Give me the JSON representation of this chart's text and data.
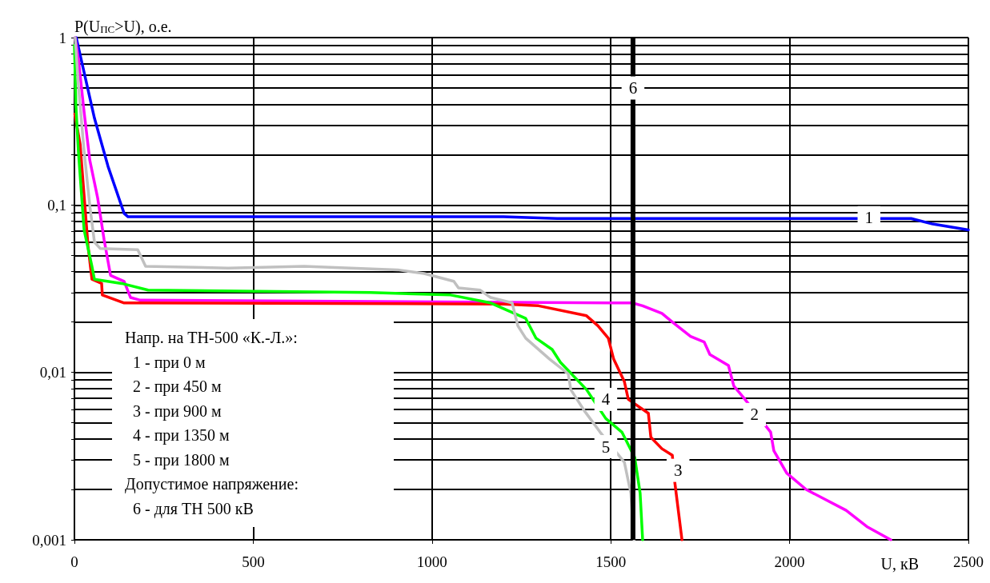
{
  "chart_data": {
    "type": "line",
    "xlabel": "U, кВ",
    "ylabel": "P(U$_{ПС}$>U), о.е.",
    "log": "y",
    "grid": true,
    "marker": "none",
    "line_style": "solid",
    "xlim": [
      0,
      2500
    ],
    "xticks": [
      0,
      500,
      1000,
      1500,
      2000,
      2500
    ],
    "ylim": [
      0.001,
      1
    ],
    "yticks": [
      {
        "value": 0.001,
        "label": "0,001"
      },
      {
        "value": 0.002,
        "label": null
      },
      {
        "value": 0.003,
        "label": null
      },
      {
        "value": 0.004,
        "label": null
      },
      {
        "value": 0.005,
        "label": null
      },
      {
        "value": 0.006,
        "label": null
      },
      {
        "value": 0.007,
        "label": null
      },
      {
        "value": 0.008,
        "label": null
      },
      {
        "value": 0.009,
        "label": null
      },
      {
        "value": 0.01,
        "label": "0,01"
      },
      {
        "value": 0.02,
        "label": null
      },
      {
        "value": 0.03,
        "label": null
      },
      {
        "value": 0.04,
        "label": null
      },
      {
        "value": 0.05,
        "label": null
      },
      {
        "value": 0.06,
        "label": null
      },
      {
        "value": 0.07,
        "label": null
      },
      {
        "value": 0.08,
        "label": null
      },
      {
        "value": 0.09,
        "label": null
      },
      {
        "value": 0.1,
        "label": "0,1"
      },
      {
        "value": 0.2,
        "label": null
      },
      {
        "value": 0.3,
        "label": null
      },
      {
        "value": 0.4,
        "label": null
      },
      {
        "value": 0.5,
        "label": null
      },
      {
        "value": 0.6,
        "label": null
      },
      {
        "value": 0.7,
        "label": null
      },
      {
        "value": 0.8,
        "label": null
      },
      {
        "value": 0.9,
        "label": null
      },
      1
    ],
    "series": [
      {
        "color": "#0000ff",
        "x": [
          5,
          27,
          56,
          94,
          139,
          150,
          1200,
          1350,
          2340,
          2400,
          2500
        ],
        "values": [
          1,
          0.62,
          0.33,
          0.17,
          0.089,
          0.085,
          0.085,
          0.083,
          0.083,
          0.077,
          0.071
        ]
      },
      {
        "color": "#ff00ff",
        "x": [
          2,
          11,
          27,
          43,
          65,
          83,
          101,
          139,
          157,
          184,
          1560,
          1589,
          1643,
          1672,
          1723,
          1761,
          1777,
          1829,
          1844,
          1873,
          1947,
          1956,
          1992,
          2046,
          2158,
          2216,
          2283
        ],
        "values": [
          1,
          0.75,
          0.36,
          0.185,
          0.11,
          0.062,
          0.038,
          0.035,
          0.028,
          0.027,
          0.026,
          0.025,
          0.0225,
          0.02,
          0.0164,
          0.0152,
          0.0128,
          0.011,
          0.0083,
          0.007,
          0.0044,
          0.0034,
          0.0025,
          0.002,
          0.0015,
          0.0012,
          0.001
        ]
      },
      {
        "color": "#ff0000",
        "x": [
          1,
          16,
          38,
          49,
          76,
          78,
          139,
          1200,
          1298,
          1432,
          1464,
          1493,
          1508,
          1538,
          1549,
          1605,
          1612,
          1643,
          1672,
          1679,
          1699
        ],
        "values": [
          0.35,
          0.23,
          0.057,
          0.036,
          0.034,
          0.029,
          0.026,
          0.0256,
          0.025,
          0.0218,
          0.019,
          0.016,
          0.012,
          0.0088,
          0.0069,
          0.0057,
          0.0041,
          0.0035,
          0.0032,
          0.0022,
          0.001
        ]
      },
      {
        "color": "#00ff00",
        "x": [
          0,
          4,
          11,
          27,
          49,
          56,
          132,
          206,
          828,
          1052,
          1164,
          1262,
          1291,
          1336,
          1359,
          1432,
          1486,
          1531,
          1567,
          1582,
          1589
        ],
        "values": [
          0.9,
          0.4,
          0.21,
          0.071,
          0.043,
          0.036,
          0.034,
          0.031,
          0.03,
          0.029,
          0.026,
          0.021,
          0.016,
          0.0137,
          0.0115,
          0.0079,
          0.0053,
          0.0044,
          0.0031,
          0.0019,
          0.001
        ]
      },
      {
        "color": "#c0c0c0",
        "x": [
          2,
          11,
          27,
          43,
          56,
          72,
          177,
          199,
          430,
          642,
          904,
          978,
          1061,
          1074,
          1135,
          1164,
          1224,
          1240,
          1262,
          1329,
          1381,
          1388,
          1426,
          1470,
          1538,
          1556,
          1565
        ],
        "values": [
          1,
          0.52,
          0.21,
          0.099,
          0.06,
          0.055,
          0.054,
          0.043,
          0.042,
          0.043,
          0.041,
          0.039,
          0.035,
          0.032,
          0.031,
          0.028,
          0.026,
          0.019,
          0.016,
          0.012,
          0.0098,
          0.0079,
          0.0059,
          0.0044,
          0.0029,
          0.0019,
          0.001
        ]
      }
    ],
    "ref_lines": [
      {
        "axis": "x",
        "value": 1562,
        "color": "#000000"
      }
    ],
    "annotations": [
      {
        "text": "6",
        "x": 1562,
        "y": 0.5
      },
      {
        "text": "1",
        "x": 2222,
        "y": 0.084
      },
      {
        "text": "2",
        "x": 1902,
        "y": 0.0056
      },
      {
        "text": "3",
        "x": 1688,
        "y": 0.0026
      },
      {
        "text": "4",
        "x": 1486,
        "y": 0.0069
      },
      {
        "text": "5",
        "x": 1486,
        "y": 0.0036
      },
      "Напр. на ТН-500 «К.-Л.»:",
      "  1 - при 0 м",
      "  2 - при 450 м",
      "  3 - при 900 м",
      "  4 - при 1350 м",
      "  5 - при 1800 м",
      "Допустимое напряжение:",
      "  6 - для ТН 500 кВ"
    ]
  }
}
